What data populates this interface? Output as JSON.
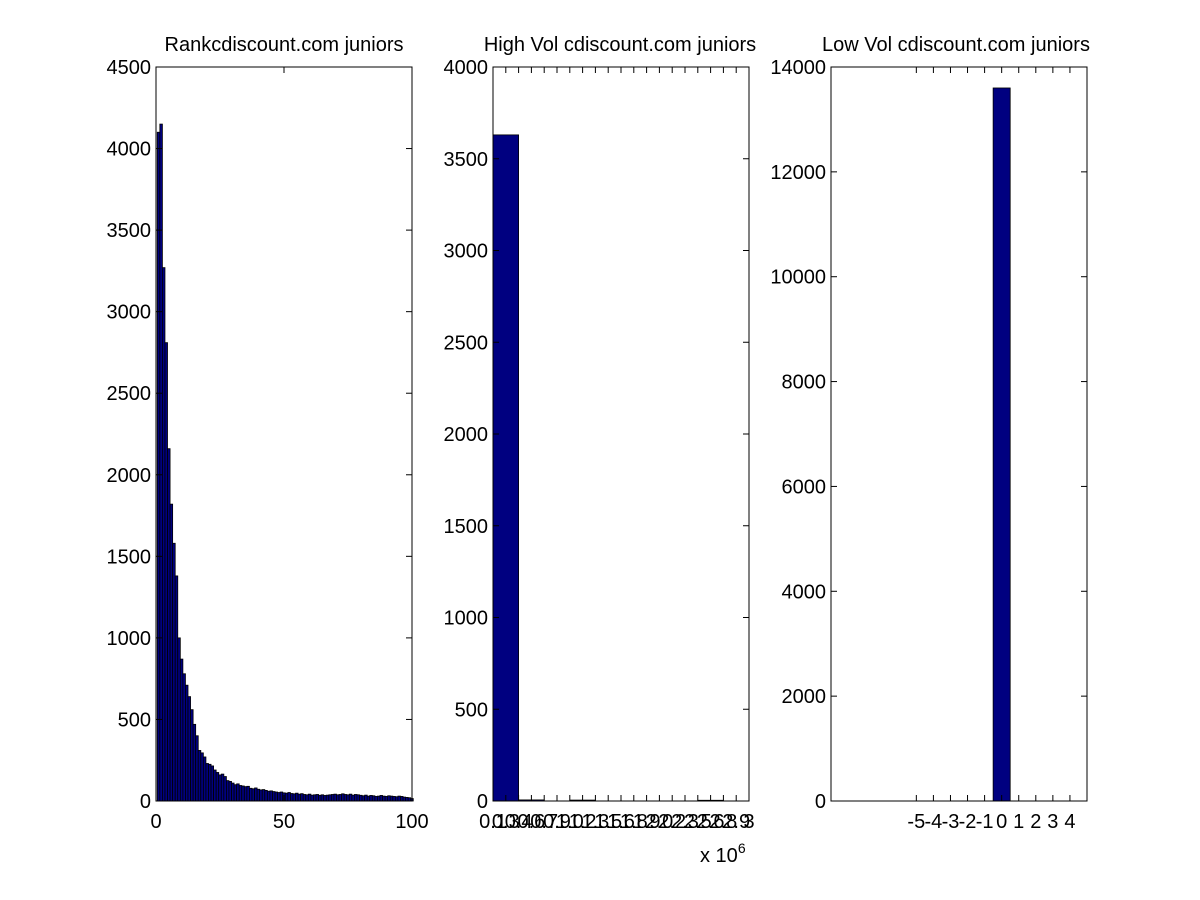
{
  "colors": {
    "bar_fill": "#000080",
    "bar_edge": "#000000",
    "axes": "#000000",
    "background": "#ffffff"
  },
  "chart_data": [
    {
      "type": "bar",
      "title": "Rankcdiscount.com juniors",
      "xlabel": "",
      "ylabel": "",
      "xlim": [
        0,
        100
      ],
      "ylim": [
        0,
        4500
      ],
      "xticks": [
        0,
        50,
        100
      ],
      "yticks": [
        0,
        500,
        1000,
        1500,
        2000,
        2500,
        3000,
        3500,
        4000,
        4500
      ],
      "bin_width": 1,
      "x": [
        1,
        2,
        3,
        4,
        5,
        6,
        7,
        8,
        9,
        10,
        11,
        12,
        13,
        14,
        15,
        16,
        17,
        18,
        19,
        20,
        21,
        22,
        23,
        24,
        25,
        26,
        27,
        28,
        29,
        30,
        31,
        32,
        33,
        34,
        35,
        36,
        37,
        38,
        39,
        40,
        41,
        42,
        43,
        44,
        45,
        46,
        47,
        48,
        49,
        50,
        51,
        52,
        53,
        54,
        55,
        56,
        57,
        58,
        59,
        60,
        61,
        62,
        63,
        64,
        65,
        66,
        67,
        68,
        69,
        70,
        71,
        72,
        73,
        74,
        75,
        76,
        77,
        78,
        79,
        80,
        81,
        82,
        83,
        84,
        85,
        86,
        87,
        88,
        89,
        90,
        91,
        92,
        93,
        94,
        95,
        96,
        97,
        98,
        99,
        100
      ],
      "values": [
        4100,
        4150,
        3270,
        2810,
        2160,
        1820,
        1580,
        1380,
        1000,
        870,
        780,
        710,
        640,
        560,
        470,
        400,
        310,
        295,
        270,
        230,
        225,
        215,
        190,
        175,
        160,
        165,
        150,
        125,
        120,
        110,
        100,
        105,
        95,
        92,
        88,
        90,
        78,
        75,
        80,
        72,
        68,
        70,
        65,
        60,
        62,
        58,
        55,
        52,
        55,
        50,
        48,
        52,
        46,
        44,
        48,
        42,
        45,
        40,
        38,
        42,
        36,
        38,
        40,
        35,
        38,
        34,
        36,
        38,
        40,
        42,
        38,
        40,
        44,
        40,
        38,
        42,
        36,
        40,
        38,
        35,
        32,
        36,
        30,
        34,
        32,
        28,
        30,
        34,
        30,
        28,
        32,
        30,
        28,
        26,
        30,
        28,
        24,
        22,
        20,
        15
      ]
    },
    {
      "type": "bar",
      "title": "High Vol cdiscount.com juniors",
      "xlabel": "",
      "ylabel": "",
      "xlim": [
        0,
        10
      ],
      "ylim": [
        0,
        4000
      ],
      "yticks": [
        0,
        500,
        1000,
        1500,
        2000,
        2500,
        3000,
        3500,
        4000
      ],
      "xtick_labels": [
        "0.1",
        "0.3",
        "0.4",
        "0.6",
        "0.7",
        "0.9",
        "1.0",
        "1.2",
        "1.3",
        "1.5",
        "1.6",
        "1.8",
        "1.9",
        "2.0",
        "2.2",
        "2.3",
        "2.5",
        "2.6",
        "2.8",
        "2.9",
        "3"
      ],
      "x_multiplier_label": "x 10",
      "x_multiplier_exponent": "6",
      "bin_width": 1,
      "x": [
        0.5,
        1.5,
        2.5,
        3.5,
        4.5,
        5.5,
        6.5,
        7.5,
        8.5,
        9.5
      ],
      "values": [
        3630,
        6,
        0,
        5,
        0,
        0,
        0,
        0,
        4,
        0
      ]
    },
    {
      "type": "bar",
      "title": "Low Vol cdiscount.com juniors",
      "xlabel": "",
      "ylabel": "",
      "xlim": [
        -10,
        5
      ],
      "ylim": [
        0,
        14000
      ],
      "yticks": [
        0,
        2000,
        4000,
        6000,
        8000,
        10000,
        12000,
        14000
      ],
      "xticks": [
        -5,
        -4,
        -3,
        -2,
        -1,
        0,
        1,
        2,
        3,
        4
      ],
      "bin_width": 1,
      "x": [
        0
      ],
      "values": [
        13600
      ]
    }
  ]
}
